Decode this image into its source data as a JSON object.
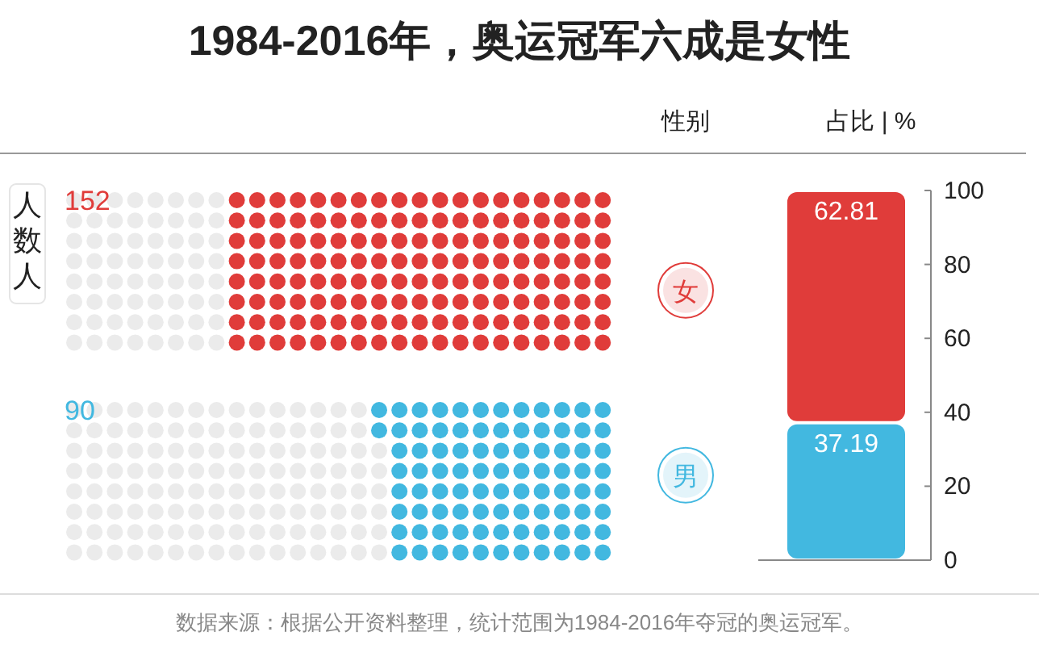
{
  "chart_data": [
    {
      "type": "other",
      "title": "1984-2016年，奥运冠军六成是女性",
      "ylabel": "人数人",
      "values": [
        152,
        90
      ],
      "colors": [
        "#e03c3a",
        "#42b8e0"
      ],
      "data_labels": true,
      "annotations": [
        "数据来源：根据公开资料整理，统计范围为1984-2016年夺冠的奥运冠军。"
      ]
    },
    {
      "type": "bar",
      "stacked": true,
      "categories": [
        null
      ],
      "ylabel": "占比 | %",
      "legend_title": "性别",
      "ylim": [
        0,
        100
      ],
      "yticks": [
        0,
        20,
        40,
        60,
        80,
        100
      ],
      "data_labels": true,
      "legend": "left",
      "series": [
        {
          "name": "男",
          "color": "#42b8e0",
          "values": [
            37.19
          ]
        },
        {
          "name": "女",
          "color": "#e03c3a",
          "values": [
            62.81
          ]
        }
      ]
    }
  ]
}
